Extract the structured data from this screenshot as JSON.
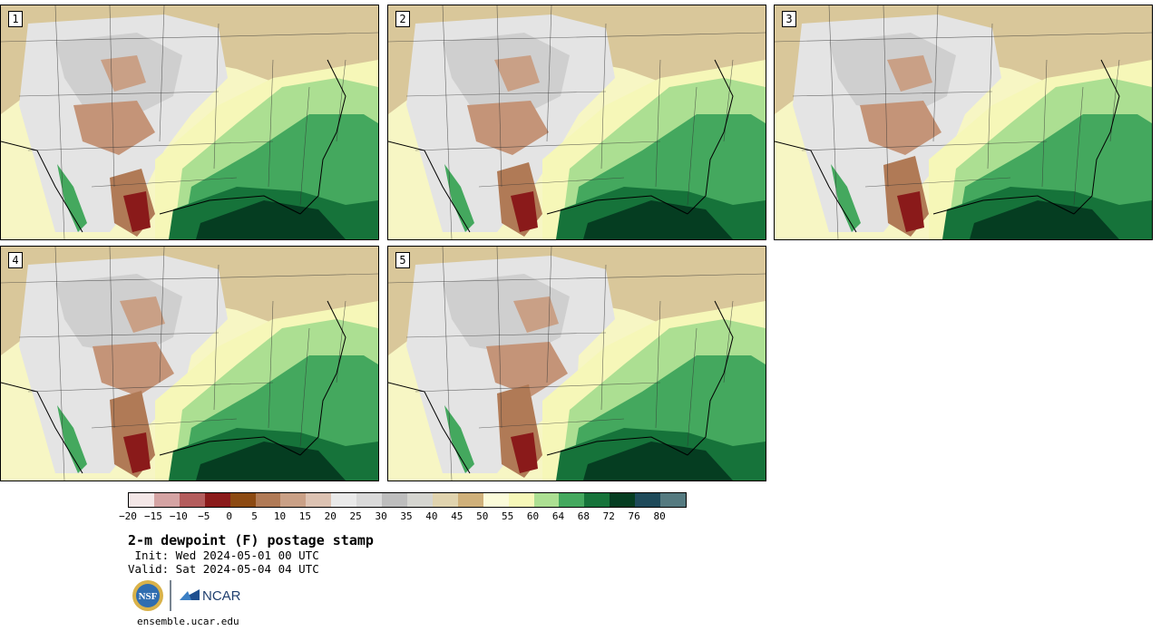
{
  "panels": [
    {
      "label": "1"
    },
    {
      "label": "2"
    },
    {
      "label": "3"
    },
    {
      "label": "4"
    },
    {
      "label": "5"
    }
  ],
  "colorbar": {
    "colors": [
      "#f3e6e6",
      "#d4a3a3",
      "#b35c5c",
      "#8a1a1a",
      "#8c4a12",
      "#b07a56",
      "#c9a086",
      "#dcc2b2",
      "#e9e9e9",
      "#d9d9d9",
      "#bdbdbd",
      "#d5d5d0",
      "#e0d3ae",
      "#cfb07a",
      "#fbfbd9",
      "#f6f7b8",
      "#acdf92",
      "#44a85e",
      "#16733a",
      "#053d21",
      "#1e4a5a",
      "#557a80"
    ],
    "ticks": [
      "−20",
      "−15",
      "−10",
      "−5",
      "0",
      "5",
      "10",
      "15",
      "20",
      "25",
      "30",
      "35",
      "40",
      "45",
      "50",
      "55",
      "60",
      "64",
      "68",
      "72",
      "76",
      "80"
    ]
  },
  "title": "2-m dewpoint (F) postage stamp",
  "init": " Init: Wed 2024-05-01 00 UTC",
  "valid": "Valid: Sat 2024-05-04 04 UTC",
  "logos": {
    "nsf_text": "NSF",
    "ncar_text": "NCAR"
  },
  "url": "ensemble.ucar.edu"
}
